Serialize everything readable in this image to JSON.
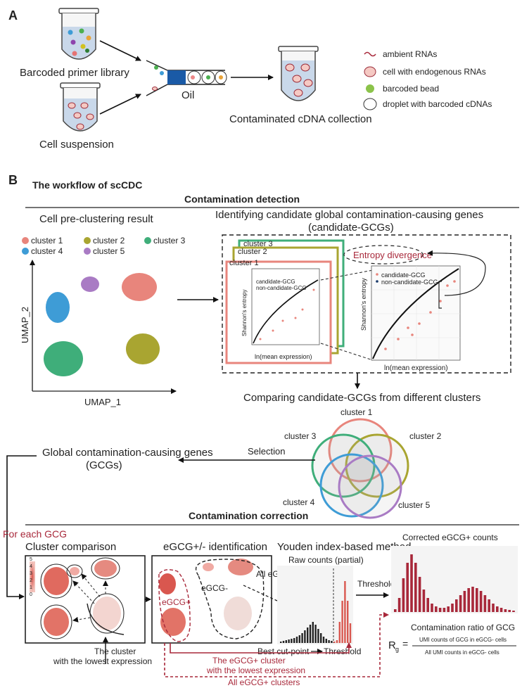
{
  "panel_a": {
    "label": "A",
    "tube_library": "Barcoded primer library",
    "tube_cells": "Cell suspension",
    "oil": "Oil",
    "collection": "Contaminated cDNA collection",
    "legend": [
      "ambient RNAs",
      "cell with endogenous RNAs",
      "barcoded bead",
      "droplet with barcoded cDNAs"
    ]
  },
  "panel_b": {
    "label": "B",
    "title": "The workflow of scCDC",
    "detection_header": "Contamination detection",
    "preclust_title": "Cell pre-clustering result",
    "clusters": [
      "cluster 1",
      "cluster 2",
      "cluster 3",
      "cluster 4",
      "cluster 5"
    ],
    "umap_x": "UMAP_1",
    "umap_y": "UMAP_2",
    "identify_title_1": "Identifying candidate global contamination-causing genes",
    "identify_title_2": "(candidate-GCGs)",
    "stack_labels": [
      "cluster 3",
      "cluster 2",
      "cluster 1"
    ],
    "entropy_div": "Entropy divergence",
    "plot_xlabel": "ln(mean expression)",
    "plot_ylabel": "Shannon's entropy",
    "legend_candidate": "candidate-GCG",
    "legend_noncandidate": "non-candidate-GCG",
    "compare_title": "Comparing candidate-GCGs from different clusters",
    "venn_labels": [
      "cluster 1",
      "cluster 2",
      "cluster 3",
      "cluster 4",
      "cluster 5"
    ],
    "selection": "Selection",
    "gcg_1": "Global contamination-causing genes",
    "gcg_2": "(GCGs)",
    "correction_header": "Contamination correction",
    "for_each": "For each GCG",
    "cluster_comparison": "Cluster comparison",
    "egcg_ident": "eGCG+/- identification",
    "youden": "Youden index-based method",
    "corrected_title": "Corrected eGCG+ counts",
    "raw_counts": "Raw counts (partial)",
    "all_neg": "All eGCG- clusters",
    "egcg_minus": "eGCG-",
    "egcg_plus": "eGCG+",
    "best_cut": "Best cut-point",
    "threshold_axis": "Threshold",
    "threshold_arrow": "Threshold",
    "lowest_1": "The cluster",
    "lowest_2": "with the lowest expression",
    "egcg_low_1": "The eGCG+ cluster",
    "egcg_low_2": "with the lowest expression",
    "all_pos": "All eGCG+ clusters",
    "ratio_title": "Contamination ratio of GCG",
    "ratio_symbol": "R",
    "ratio_sub": "g",
    "ratio_num": "UMI counts of GCG in eGCG- cells",
    "ratio_den": "All UMI counts in eGCG- cells",
    "scale_ticks": [
      "5",
      "4",
      "3",
      "2",
      "1",
      "0"
    ]
  },
  "colors": {
    "c1": "#e8857c",
    "c2": "#a9a531",
    "c3": "#3fae7a",
    "c4": "#3e9cd6",
    "c5": "#a97bc4",
    "accent": "#a8283a"
  }
}
